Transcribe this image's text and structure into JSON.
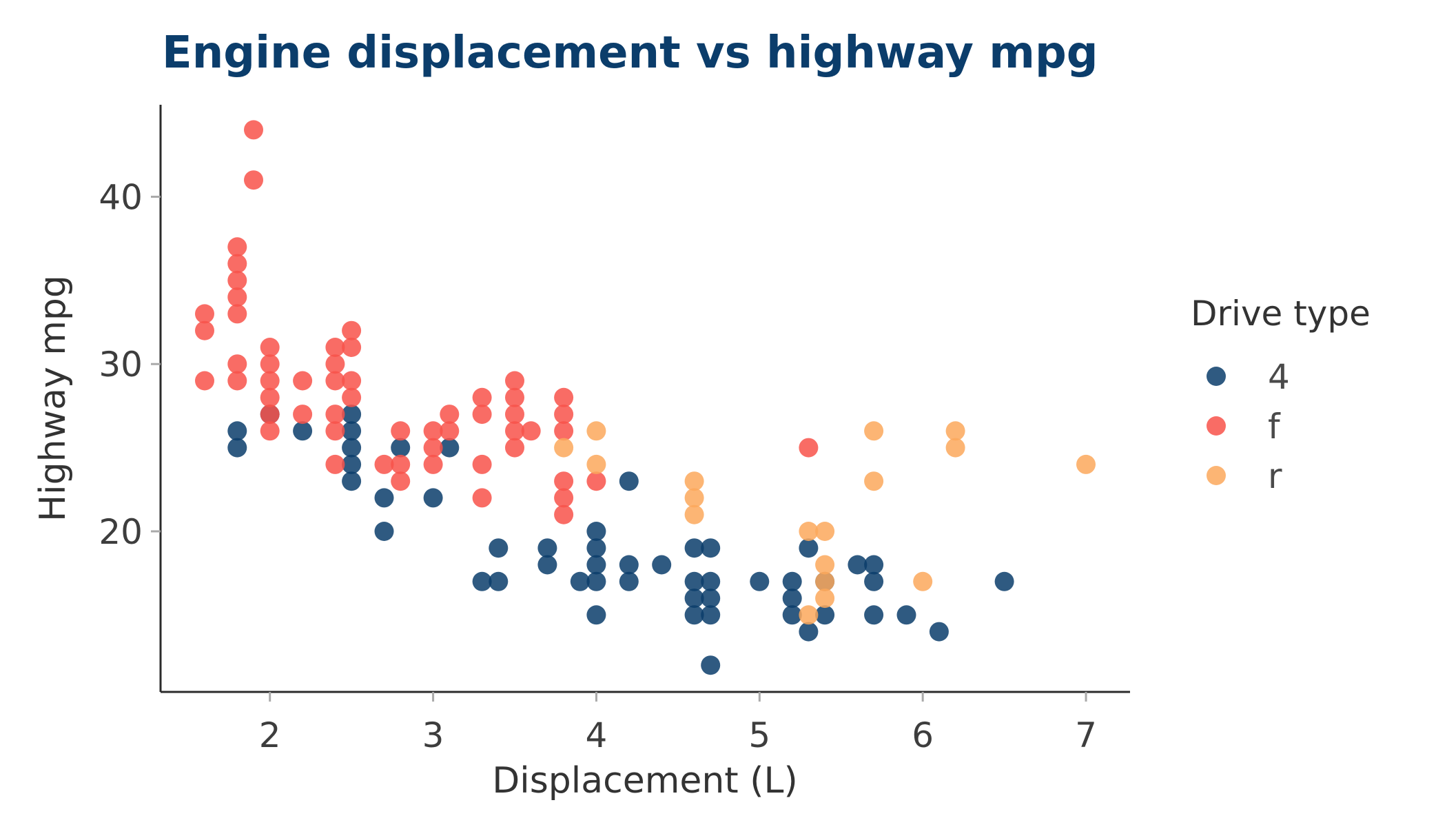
{
  "chart_data": {
    "type": "scatter",
    "title": "Engine displacement vs highway mpg",
    "xlabel": "Displacement (L)",
    "ylabel": "Highway mpg",
    "xlim": [
      1.33,
      7.27
    ],
    "ylim": [
      10.4,
      45.5
    ],
    "xticks": [
      2,
      3,
      4,
      5,
      6,
      7
    ],
    "yticks": [
      20,
      30,
      40
    ],
    "grid": false,
    "legend": {
      "title": "Drive type",
      "position": "right"
    },
    "colors": {
      "title": "#0b3d6b",
      "axis": "#2b2b2b"
    },
    "series": [
      {
        "name": "4",
        "color": "#0b3d6b",
        "points": [
          [
            1.8,
            26
          ],
          [
            1.8,
            25
          ],
          [
            2.0,
            27
          ],
          [
            2.2,
            26
          ],
          [
            2.5,
            27
          ],
          [
            2.5,
            26
          ],
          [
            2.5,
            25
          ],
          [
            2.5,
            24
          ],
          [
            2.5,
            23
          ],
          [
            2.7,
            22
          ],
          [
            2.7,
            20
          ],
          [
            2.8,
            25
          ],
          [
            3.0,
            22
          ],
          [
            3.1,
            25
          ],
          [
            3.3,
            17
          ],
          [
            3.4,
            19
          ],
          [
            3.4,
            17
          ],
          [
            3.7,
            19
          ],
          [
            3.7,
            18
          ],
          [
            3.9,
            17
          ],
          [
            4.0,
            20
          ],
          [
            4.0,
            19
          ],
          [
            4.0,
            18
          ],
          [
            4.0,
            17
          ],
          [
            4.0,
            15
          ],
          [
            4.2,
            23
          ],
          [
            4.2,
            18
          ],
          [
            4.2,
            17
          ],
          [
            4.4,
            18
          ],
          [
            4.6,
            19
          ],
          [
            4.6,
            17
          ],
          [
            4.6,
            16
          ],
          [
            4.6,
            15
          ],
          [
            4.7,
            19
          ],
          [
            4.7,
            17
          ],
          [
            4.7,
            16
          ],
          [
            4.7,
            15
          ],
          [
            4.7,
            12
          ],
          [
            5.0,
            17
          ],
          [
            5.2,
            17
          ],
          [
            5.2,
            16
          ],
          [
            5.2,
            15
          ],
          [
            5.3,
            19
          ],
          [
            5.3,
            14
          ],
          [
            5.4,
            17
          ],
          [
            5.4,
            15
          ],
          [
            5.6,
            18
          ],
          [
            5.7,
            18
          ],
          [
            5.7,
            17
          ],
          [
            5.7,
            15
          ],
          [
            5.9,
            15
          ],
          [
            6.1,
            14
          ],
          [
            6.5,
            17
          ]
        ]
      },
      {
        "name": "f",
        "color": "#f8524a",
        "points": [
          [
            1.6,
            33
          ],
          [
            1.6,
            32
          ],
          [
            1.6,
            29
          ],
          [
            1.8,
            37
          ],
          [
            1.8,
            36
          ],
          [
            1.8,
            35
          ],
          [
            1.8,
            34
          ],
          [
            1.8,
            33
          ],
          [
            1.8,
            30
          ],
          [
            1.8,
            29
          ],
          [
            1.9,
            44
          ],
          [
            1.9,
            41
          ],
          [
            2.0,
            31
          ],
          [
            2.0,
            30
          ],
          [
            2.0,
            29
          ],
          [
            2.0,
            28
          ],
          [
            2.0,
            27
          ],
          [
            2.0,
            26
          ],
          [
            2.2,
            29
          ],
          [
            2.2,
            27
          ],
          [
            2.4,
            31
          ],
          [
            2.4,
            30
          ],
          [
            2.4,
            29
          ],
          [
            2.4,
            27
          ],
          [
            2.4,
            26
          ],
          [
            2.4,
            24
          ],
          [
            2.5,
            32
          ],
          [
            2.5,
            31
          ],
          [
            2.5,
            29
          ],
          [
            2.5,
            28
          ],
          [
            2.7,
            24
          ],
          [
            2.8,
            26
          ],
          [
            2.8,
            24
          ],
          [
            2.8,
            23
          ],
          [
            3.0,
            26
          ],
          [
            3.0,
            25
          ],
          [
            3.0,
            24
          ],
          [
            3.1,
            27
          ],
          [
            3.1,
            26
          ],
          [
            3.3,
            28
          ],
          [
            3.3,
            27
          ],
          [
            3.3,
            24
          ],
          [
            3.3,
            22
          ],
          [
            3.5,
            29
          ],
          [
            3.5,
            28
          ],
          [
            3.5,
            27
          ],
          [
            3.5,
            26
          ],
          [
            3.5,
            25
          ],
          [
            3.6,
            26
          ],
          [
            3.8,
            28
          ],
          [
            3.8,
            27
          ],
          [
            3.8,
            26
          ],
          [
            3.8,
            23
          ],
          [
            3.8,
            22
          ],
          [
            3.8,
            21
          ],
          [
            4.0,
            23
          ],
          [
            5.3,
            25
          ]
        ]
      },
      {
        "name": "r",
        "color": "#fca85c",
        "points": [
          [
            3.8,
            25
          ],
          [
            4.0,
            26
          ],
          [
            4.0,
            24
          ],
          [
            4.6,
            23
          ],
          [
            4.6,
            22
          ],
          [
            4.6,
            21
          ],
          [
            5.3,
            20
          ],
          [
            5.3,
            15
          ],
          [
            5.4,
            20
          ],
          [
            5.4,
            18
          ],
          [
            5.4,
            17
          ],
          [
            5.4,
            16
          ],
          [
            5.7,
            26
          ],
          [
            5.7,
            23
          ],
          [
            6.0,
            17
          ],
          [
            6.2,
            26
          ],
          [
            6.2,
            25
          ],
          [
            7.0,
            24
          ]
        ]
      }
    ]
  }
}
